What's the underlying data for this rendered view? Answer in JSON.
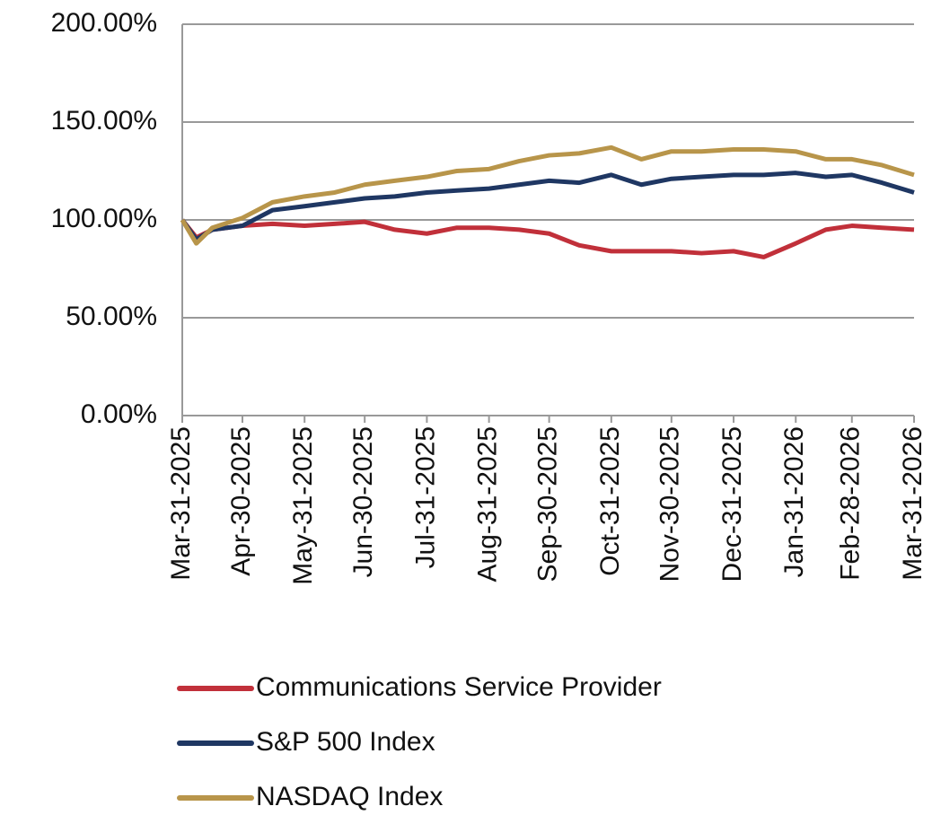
{
  "chart_data": {
    "type": "line",
    "x": [
      "2025-03-31",
      "2025-04-07",
      "2025-04-15",
      "2025-04-30",
      "2025-05-15",
      "2025-05-31",
      "2025-06-15",
      "2025-06-30",
      "2025-07-15",
      "2025-07-31",
      "2025-08-15",
      "2025-08-31",
      "2025-09-15",
      "2025-09-30",
      "2025-10-15",
      "2025-10-31",
      "2025-11-15",
      "2025-11-30",
      "2025-12-15",
      "2025-12-31",
      "2026-01-15",
      "2026-01-31",
      "2026-02-15",
      "2026-02-28",
      "2026-03-15",
      "2026-03-31"
    ],
    "series": [
      {
        "name": "Communications Service Provider",
        "color": "#c1303a",
        "values": [
          100,
          91,
          95,
          97,
          98,
          97,
          98,
          99,
          95,
          93,
          96,
          96,
          95,
          93,
          87,
          84,
          84,
          84,
          83,
          84,
          81,
          88,
          95,
          97,
          96,
          95
        ]
      },
      {
        "name": "S&P 500 Index",
        "color": "#1f3763",
        "values": [
          100,
          90,
          95,
          97,
          105,
          107,
          109,
          111,
          112,
          114,
          115,
          116,
          118,
          120,
          119,
          123,
          118,
          121,
          122,
          123,
          123,
          124,
          122,
          123,
          119,
          114
        ]
      },
      {
        "name": "NASDAQ Index",
        "color": "#b8954a",
        "values": [
          100,
          88,
          96,
          101,
          109,
          112,
          114,
          118,
          120,
          122,
          125,
          126,
          130,
          133,
          134,
          137,
          131,
          135,
          135,
          136,
          136,
          135,
          131,
          131,
          128,
          123
        ]
      }
    ],
    "xlim": [
      "2025-03-31",
      "2026-03-31"
    ],
    "xticks": [
      {
        "value": "2025-03-31",
        "label": "Mar-31-2025"
      },
      {
        "value": "2025-04-30",
        "label": "Apr-30-2025"
      },
      {
        "value": "2025-05-31",
        "label": "May-31-2025"
      },
      {
        "value": "2025-06-30",
        "label": "Jun-30-2025"
      },
      {
        "value": "2025-07-31",
        "label": "Jul-31-2025"
      },
      {
        "value": "2025-08-31",
        "label": "Aug-31-2025"
      },
      {
        "value": "2025-09-30",
        "label": "Sep-30-2025"
      },
      {
        "value": "2025-10-31",
        "label": "Oct-31-2025"
      },
      {
        "value": "2025-11-30",
        "label": "Nov-30-2025"
      },
      {
        "value": "2025-12-31",
        "label": "Dec-31-2025"
      },
      {
        "value": "2026-01-31",
        "label": "Jan-31-2026"
      },
      {
        "value": "2026-02-28",
        "label": "Feb-28-2026"
      },
      {
        "value": "2026-03-31",
        "label": "Mar-31-2026"
      }
    ],
    "ylim": [
      0,
      200
    ],
    "yticks": [
      {
        "value": 0,
        "label": "0.00%"
      },
      {
        "value": 50,
        "label": "50.00%"
      },
      {
        "value": 100,
        "label": "100.00%"
      },
      {
        "value": 150,
        "label": "150.00%"
      },
      {
        "value": 200,
        "label": "200.00%"
      }
    ],
    "grid": true,
    "legend": "bottom"
  }
}
